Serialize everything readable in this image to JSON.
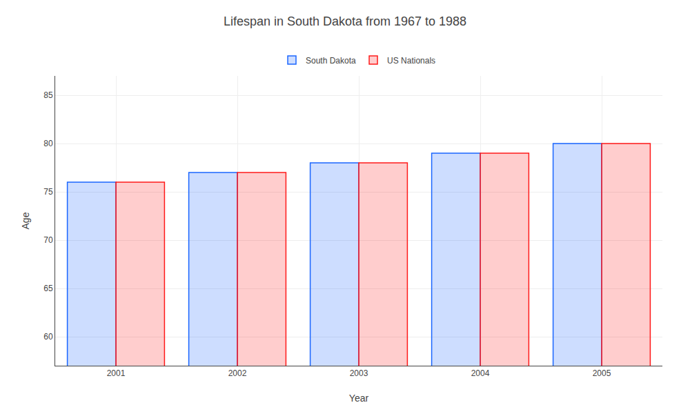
{
  "chart_data": {
    "type": "bar",
    "title": "Lifespan in South Dakota from 1967 to 1988",
    "xlabel": "Year",
    "ylabel": "Age",
    "categories": [
      "2001",
      "2002",
      "2003",
      "2004",
      "2005"
    ],
    "series": [
      {
        "name": "South Dakota",
        "color": "#1a66ff",
        "values": [
          76,
          77,
          78,
          79,
          80
        ]
      },
      {
        "name": "US Nationals",
        "color": "#ff1a1a",
        "values": [
          76,
          77,
          78,
          79,
          80
        ]
      }
    ],
    "ylim": [
      57,
      87
    ],
    "yticks": [
      60,
      65,
      70,
      75,
      80,
      85
    ],
    "grid": true,
    "legend": "top"
  }
}
